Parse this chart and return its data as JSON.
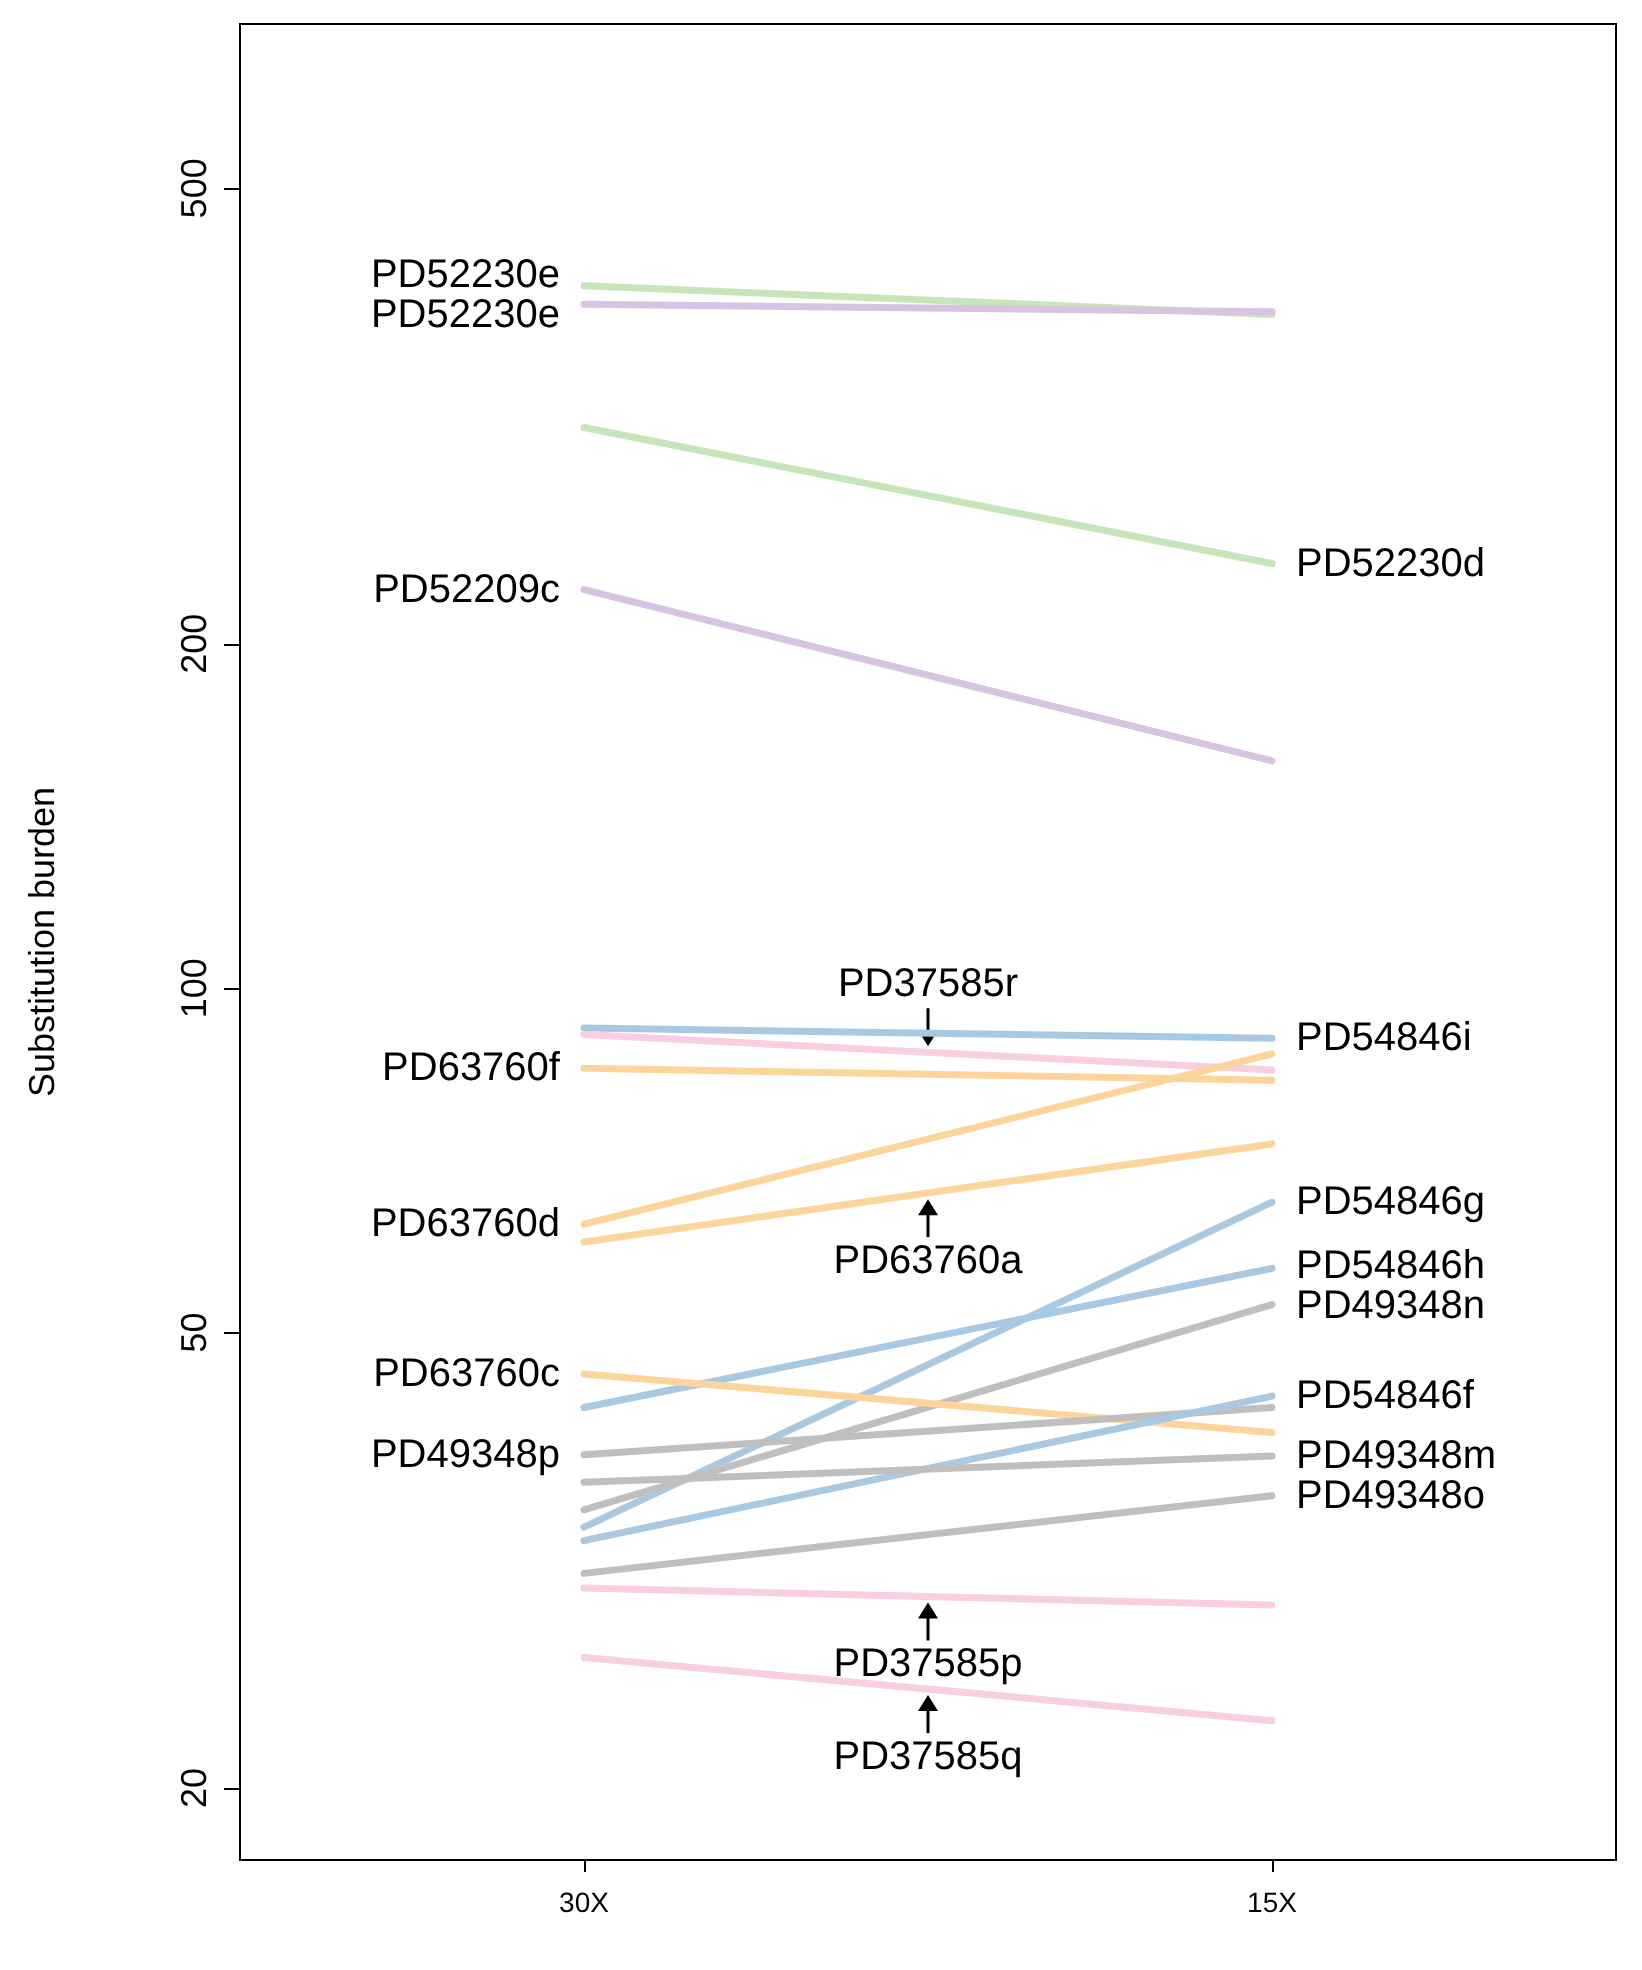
{
  "chart_data": {
    "type": "line",
    "ylabel": "Substitution burden",
    "categories": [
      "30X",
      "15X"
    ],
    "log": "y",
    "ylim": [
      17.3,
      696
    ],
    "yticks": [
      20,
      50,
      100,
      200,
      500
    ],
    "grid": false,
    "marker": "none",
    "line_style": "solid",
    "series": [
      {
        "color": "#c5e6b9",
        "values": [
          411,
          388
        ]
      },
      {
        "color": "#d8c3e2",
        "values": [
          396,
          390
        ]
      },
      {
        "color": "#c5e6b9",
        "values": [
          309,
          235
        ]
      },
      {
        "color": "#d8c3e2",
        "values": [
          223,
          158
        ]
      },
      {
        "color": "#a9c9e2",
        "values": [
          92.3,
          90.4
        ]
      },
      {
        "color": "#f9cde2",
        "values": [
          91.1,
          84.8
        ]
      },
      {
        "color": "#fdd59c",
        "values": [
          85.1,
          83.1
        ]
      },
      {
        "color": "#fdd59c",
        "values": [
          62.2,
          87.6
        ]
      },
      {
        "color": "#fdd59c",
        "values": [
          60.0,
          73.1
        ]
      },
      {
        "color": "#a9c9e2",
        "values": [
          33.8,
          65.0
        ]
      },
      {
        "color": "#a9c9e2",
        "values": [
          43.0,
          56.9
        ]
      },
      {
        "color": "#bfbfbf",
        "values": [
          35.0,
          52.9
        ]
      },
      {
        "color": "#fdd59c",
        "values": [
          46.0,
          40.9
        ]
      },
      {
        "color": "#bfbfbf",
        "values": [
          39.1,
          43.0
        ]
      },
      {
        "color": "#a9c9e2",
        "values": [
          32.9,
          44.0
        ]
      },
      {
        "color": "#bfbfbf",
        "values": [
          37.0,
          39.0
        ]
      },
      {
        "color": "#bfbfbf",
        "values": [
          30.8,
          36.0
        ]
      },
      {
        "color": "#f9cde2",
        "values": [
          29.9,
          28.9
        ]
      },
      {
        "color": "#f9cde2",
        "values": [
          26.0,
          22.9
        ]
      }
    ],
    "annotations": [
      {
        "text": "PD52230e",
        "x": "30X",
        "y": 411
      },
      {
        "text": "PD52230e",
        "x": "30X",
        "y": 396
      },
      {
        "text": "PD52209c",
        "x": "30X",
        "y": 223
      },
      {
        "text": "PD52230d",
        "x": "15X",
        "y": 235
      },
      {
        "text": "PD37585r",
        "y": 87.9
      },
      {
        "text": "PD54846i",
        "x": "15X",
        "y": 90.4
      },
      {
        "text": "PD63760f",
        "x": "30X",
        "y": 85.1
      },
      {
        "text": "PD63760d",
        "x": "30X",
        "y": 62.2
      },
      {
        "text": "PD63760a",
        "y": 66.2
      },
      {
        "text": "PD54846g",
        "x": "15X",
        "y": 65.0
      },
      {
        "text": "PD54846h",
        "x": "15X",
        "y": 56.9
      },
      {
        "text": "PD49348n",
        "x": "15X",
        "y": 52.9
      },
      {
        "text": "PD63760c",
        "x": "30X",
        "y": 46.0
      },
      {
        "text": "PD54846f",
        "x": "15X",
        "y": 44.0
      },
      {
        "text": "PD49348p",
        "x": "30X",
        "y": 39.1
      },
      {
        "text": "PD49348m",
        "x": "15X",
        "y": 39.0
      },
      {
        "text": "PD49348o",
        "x": "15X",
        "y": 36.0
      },
      {
        "text": "PD37585p",
        "y": 29.4
      },
      {
        "text": "PD37585q",
        "y": 24.4
      }
    ]
  }
}
